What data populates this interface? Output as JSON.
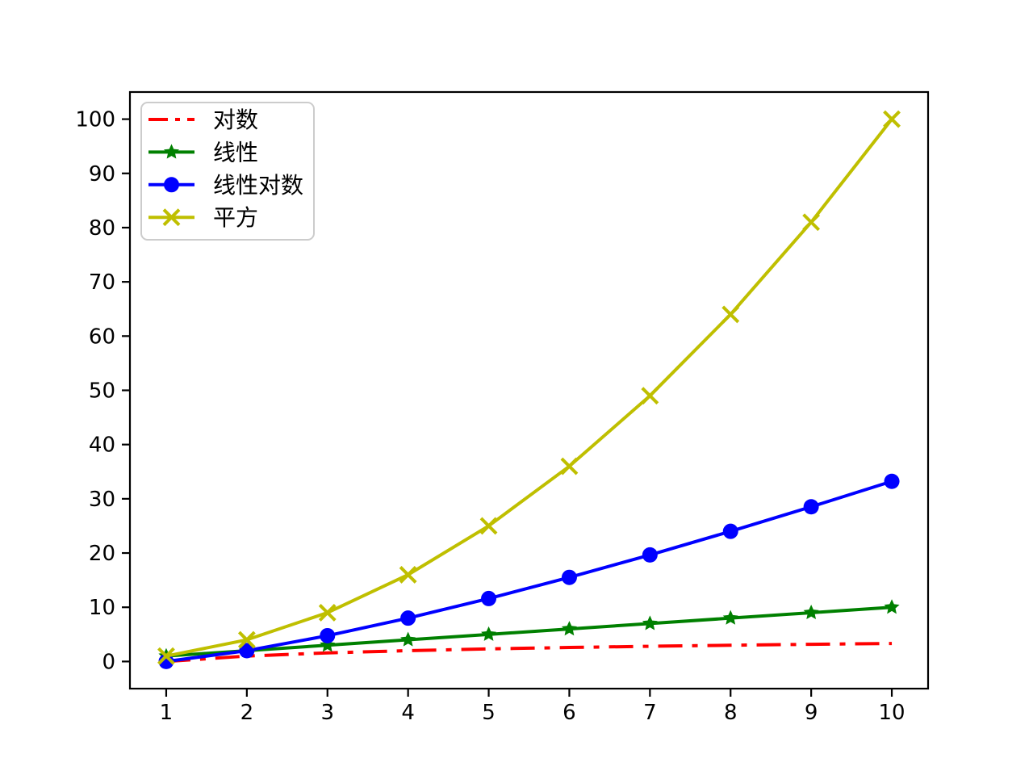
{
  "chart_data": {
    "type": "line",
    "title": "",
    "xlabel": "",
    "ylabel": "",
    "background_color": "#ffffff",
    "grid": false,
    "x": [
      1,
      2,
      3,
      4,
      5,
      6,
      7,
      8,
      9,
      10
    ],
    "series": [
      {
        "id": "log",
        "name": "对数",
        "values": [
          0,
          1,
          1.585,
          2,
          2.322,
          2.585,
          2.807,
          3,
          3.17,
          3.322
        ],
        "color": "#ff0000",
        "linestyle": "dashdot",
        "marker": "none"
      },
      {
        "id": "linear",
        "name": "线性",
        "values": [
          1,
          2,
          3,
          4,
          5,
          6,
          7,
          8,
          9,
          10
        ],
        "color": "#008000",
        "linestyle": "solid",
        "marker": "star"
      },
      {
        "id": "linearlog",
        "name": "线性对数",
        "values": [
          0,
          2,
          4.755,
          8,
          11.61,
          15.51,
          19.651,
          24,
          28.529,
          33.219
        ],
        "color": "#0000ff",
        "linestyle": "solid",
        "marker": "circle"
      },
      {
        "id": "square",
        "name": "平方",
        "values": [
          1,
          4,
          9,
          16,
          25,
          36,
          49,
          64,
          81,
          100
        ],
        "color": "#bfbf00",
        "linestyle": "solid",
        "marker": "x"
      }
    ],
    "xticks": [
      1,
      2,
      3,
      4,
      5,
      6,
      7,
      8,
      9,
      10
    ],
    "yticks": [
      0,
      10,
      20,
      30,
      40,
      50,
      60,
      70,
      80,
      90,
      100
    ],
    "xlim": [
      0.55,
      10.45
    ],
    "ylim": [
      -5,
      105
    ],
    "legend_position": "upper-left",
    "legend_border_color": "#cccccc",
    "axis_color": "#000000"
  }
}
